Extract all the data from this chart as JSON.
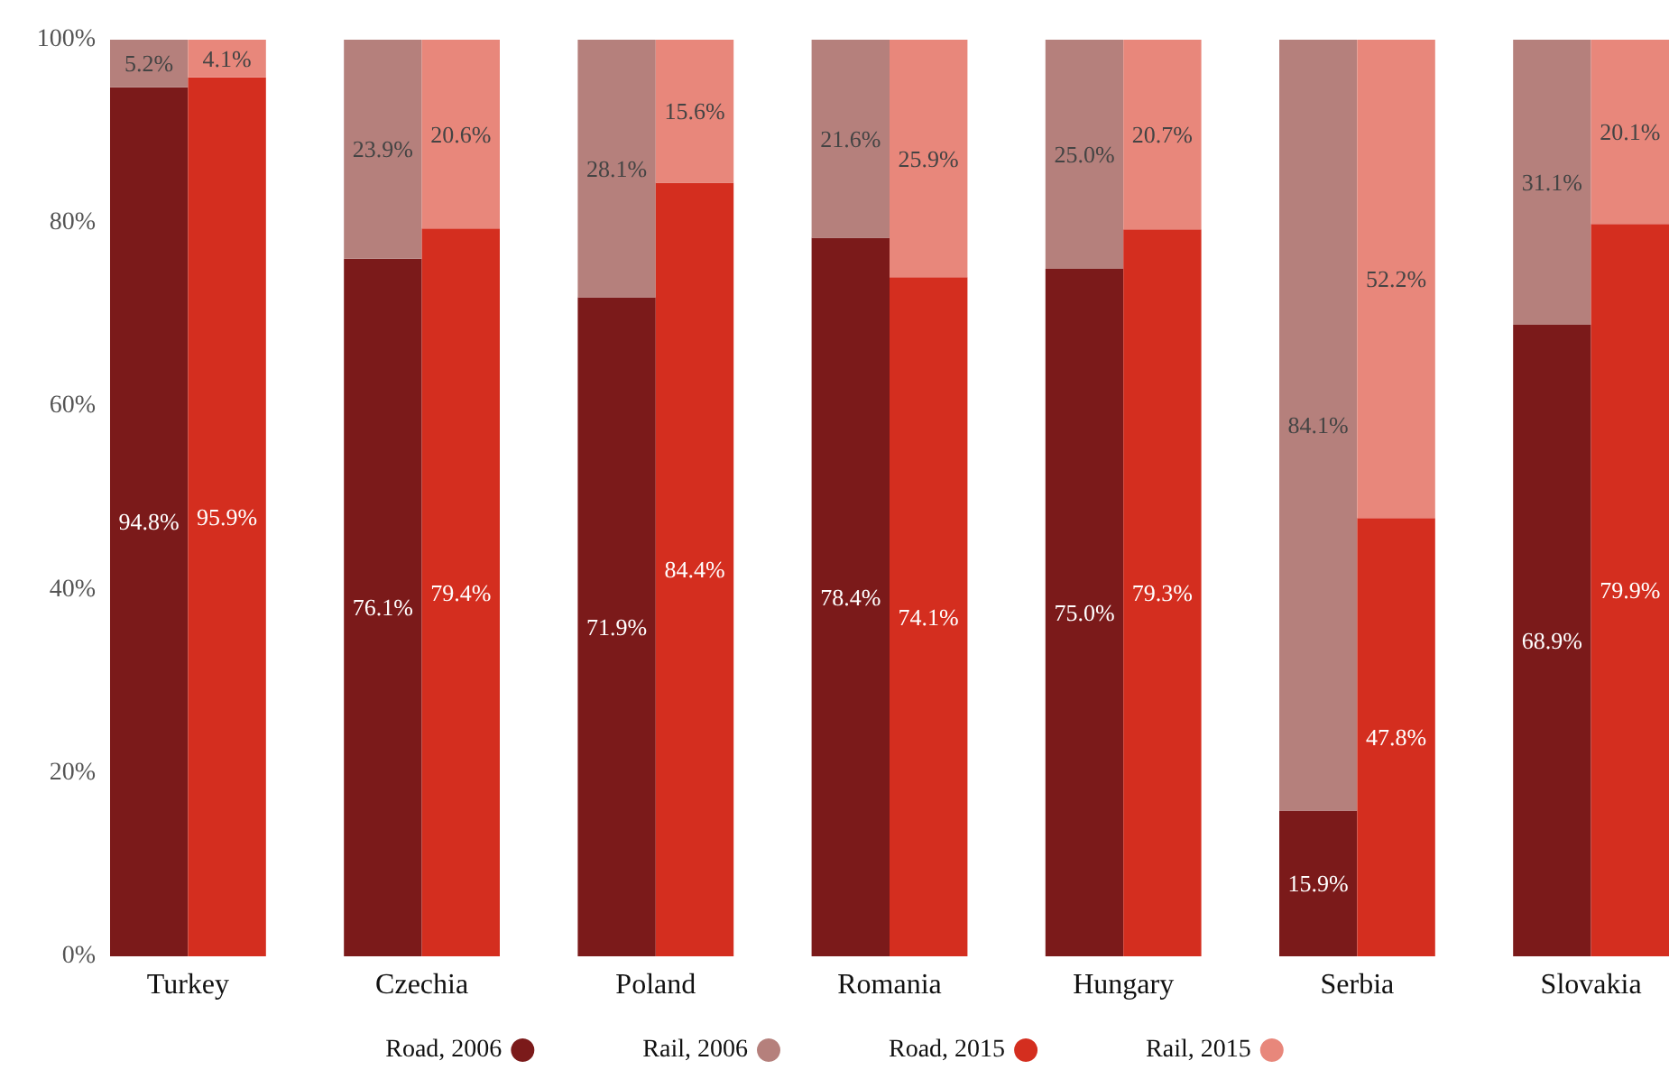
{
  "chart_data": {
    "type": "bar",
    "stacked": true,
    "categories": [
      "Turkey",
      null,
      null,
      "Czechia",
      null,
      null,
      "Poland",
      null,
      null,
      "Romania",
      null,
      null,
      "Hungary",
      null,
      null,
      "Serbia",
      null,
      null,
      "Slovakia",
      null
    ],
    "series": [
      {
        "name": "Road, 2006",
        "color": "#7b1a1a",
        "values": [
          94.8,
          null,
          null,
          76.1,
          null,
          null,
          71.9,
          null,
          null,
          78.4,
          null,
          null,
          75.0,
          null,
          null,
          15.9,
          null,
          null,
          68.9,
          null
        ],
        "value_labels": [
          "94.8%",
          null,
          null,
          "76.1%",
          null,
          null,
          "71.9%",
          null,
          null,
          "78.4%",
          null,
          null,
          "75.0%",
          null,
          null,
          "15.9%",
          null,
          null,
          "68.9%",
          null
        ]
      },
      {
        "name": "Rail, 2006",
        "color": "#b5807c",
        "values": [
          5.2,
          null,
          null,
          23.9,
          null,
          null,
          28.1,
          null,
          null,
          21.6,
          null,
          null,
          25.0,
          null,
          null,
          84.1,
          null,
          null,
          31.1,
          null
        ],
        "value_labels": [
          "5.2%",
          null,
          null,
          "23.9%",
          null,
          null,
          "28.1%",
          null,
          null,
          "21.6%",
          null,
          null,
          "25.0%",
          null,
          null,
          "84.1%",
          null,
          null,
          "31.1%",
          null
        ]
      },
      {
        "name": "Road, 2015",
        "color": "#d42e1f",
        "values": [
          null,
          95.9,
          null,
          null,
          79.4,
          null,
          null,
          84.4,
          null,
          null,
          74.1,
          null,
          null,
          79.3,
          null,
          null,
          47.8,
          null,
          null,
          79.9
        ],
        "value_labels": [
          null,
          "95.9%",
          null,
          null,
          "79.4%",
          null,
          null,
          "84.4%",
          null,
          null,
          "74.1%",
          null,
          null,
          "79.3%",
          null,
          null,
          "47.8%",
          null,
          null,
          "79.9%"
        ]
      },
      {
        "name": "Rail, 2015",
        "color": "#e8877b",
        "values": [
          null,
          4.1,
          null,
          null,
          20.6,
          null,
          null,
          15.6,
          null,
          null,
          25.9,
          null,
          null,
          20.7,
          null,
          null,
          52.2,
          null,
          null,
          20.1
        ],
        "value_labels": [
          null,
          "4.1%",
          null,
          null,
          "20.6%",
          null,
          null,
          "15.6%",
          null,
          null,
          "25.9%",
          null,
          null,
          "20.7%",
          null,
          null,
          "52.2%",
          null,
          null,
          "20.1%"
        ]
      }
    ],
    "ylim": [
      0,
      100
    ],
    "yticks": [
      {
        "value": 0,
        "label": "0%"
      },
      {
        "value": 20,
        "label": "20%"
      },
      {
        "value": 40,
        "label": "40%"
      },
      {
        "value": 60,
        "label": "60%"
      },
      {
        "value": 80,
        "label": "80%"
      },
      {
        "value": 100,
        "label": "100%"
      }
    ],
    "legend": "bottom"
  }
}
